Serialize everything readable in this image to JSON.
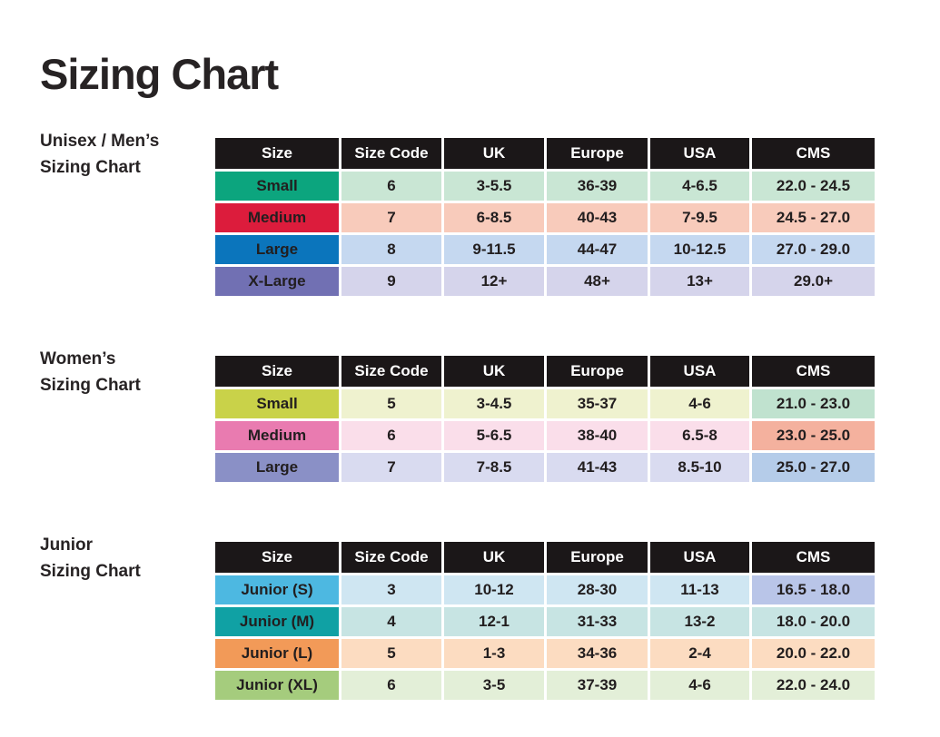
{
  "page": {
    "title": "Sizing Chart"
  },
  "colors": {
    "page_bg": "#ffffff",
    "header_bg": "#1b1718",
    "header_text": "#ffffff",
    "cell_text": "#221e1f"
  },
  "columns": {
    "size": "Size",
    "size_code": "Size Code",
    "uk": "UK",
    "europe": "Europe",
    "usa": "USA",
    "cms": "CMS"
  },
  "sections": [
    {
      "label_line1": "Unisex / Men’s",
      "label_line2": "Sizing Chart",
      "rows": [
        {
          "size": "Small",
          "size_code": "6",
          "uk": "3-5.5",
          "europe": "36-39",
          "usa": "4-6.5",
          "cms": "22.0 - 24.5",
          "accent": "#0ca57e",
          "tint": "#c9e6d4",
          "cms_tint": "#c9e6d4"
        },
        {
          "size": "Medium",
          "size_code": "7",
          "uk": "6-8.5",
          "europe": "40-43",
          "usa": "7-9.5",
          "cms": "24.5 - 27.0",
          "accent": "#dc1c3c",
          "tint": "#f8cbbb",
          "cms_tint": "#f8cbbb"
        },
        {
          "size": "Large",
          "size_code": "8",
          "uk": "9-11.5",
          "europe": "44-47",
          "usa": "10-12.5",
          "cms": "27.0 - 29.0",
          "accent": "#0b75bc",
          "tint": "#c5d8f0",
          "cms_tint": "#c5d8f0"
        },
        {
          "size": "X-Large",
          "size_code": "9",
          "uk": "12+",
          "europe": "48+",
          "usa": "13+",
          "cms": "29.0+",
          "accent": "#7170b3",
          "tint": "#d5d4eb",
          "cms_tint": "#d5d4eb"
        }
      ]
    },
    {
      "label_line1": "Women’s",
      "label_line2": "Sizing Chart",
      "rows": [
        {
          "size": "Small",
          "size_code": "5",
          "uk": "3-4.5",
          "europe": "35-37",
          "usa": "4-6",
          "cms": "21.0 - 23.0",
          "accent": "#c9d249",
          "tint": "#eff2cf",
          "cms_tint": "#c0e2cf"
        },
        {
          "size": "Medium",
          "size_code": "6",
          "uk": "5-6.5",
          "europe": "38-40",
          "usa": "6.5-8",
          "cms": "23.0 - 25.0",
          "accent": "#e97bb0",
          "tint": "#fadeea",
          "cms_tint": "#f4b19e"
        },
        {
          "size": "Large",
          "size_code": "7",
          "uk": "7-8.5",
          "europe": "41-43",
          "usa": "8.5-10",
          "cms": "25.0 - 27.0",
          "accent": "#8a90c6",
          "tint": "#d9dbf0",
          "cms_tint": "#b5cce9"
        }
      ]
    },
    {
      "label_line1": "Junior",
      "label_line2": "Sizing Chart",
      "rows": [
        {
          "size": "Junior (S)",
          "size_code": "3",
          "uk": "10-12",
          "europe": "28-30",
          "usa": "11-13",
          "cms": "16.5 - 18.0",
          "accent": "#4db8e1",
          "tint": "#cfe6f2",
          "cms_tint": "#b9c5e8"
        },
        {
          "size": "Junior (M)",
          "size_code": "4",
          "uk": "12-1",
          "europe": "31-33",
          "usa": "13-2",
          "cms": "18.0 - 20.0",
          "accent": "#10a1a4",
          "tint": "#c7e4e3",
          "cms_tint": "#c7e4e3"
        },
        {
          "size": "Junior (L)",
          "size_code": "5",
          "uk": "1-3",
          "europe": "34-36",
          "usa": "2-4",
          "cms": "20.0 - 22.0",
          "accent": "#f29a58",
          "tint": "#fcdcc1",
          "cms_tint": "#fcdcc1"
        },
        {
          "size": "Junior (XL)",
          "size_code": "6",
          "uk": "3-5",
          "europe": "37-39",
          "usa": "4-6",
          "cms": "22.0 - 24.0",
          "accent": "#a5cc7d",
          "tint": "#e3efd8",
          "cms_tint": "#e3efd8"
        }
      ]
    }
  ]
}
